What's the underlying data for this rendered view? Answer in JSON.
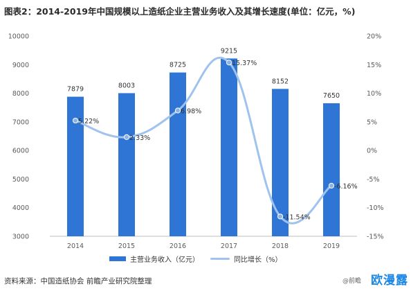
{
  "page": {
    "title": "图表2：2014-2019年中国规模以上造纸企业主营业务收入及其增长速度(单位：亿元，%)",
    "source": "资料来源：中国造纸协会 前瞻产业研究院整理",
    "corner_logo": "欧漫露",
    "corner_sub": "@前瞻"
  },
  "chart_data": {
    "type": "bar",
    "categories": [
      "2014",
      "2015",
      "2016",
      "2017",
      "2018",
      "2019"
    ],
    "series": [
      {
        "name": "主营业务收入（亿元）",
        "type": "bar",
        "axis": "left",
        "values": [
          7879,
          8003,
          8725,
          9215,
          8152,
          7650
        ],
        "labels": [
          "7879",
          "8003",
          "8725",
          "9215",
          "8152",
          "7650"
        ],
        "color": "#2e75d6"
      },
      {
        "name": "同比增长（%）",
        "type": "line",
        "axis": "right",
        "values": [
          5.22,
          2.33,
          6.98,
          15.37,
          -11.54,
          -6.16
        ],
        "labels": [
          "5.22%",
          "2.33%",
          "6.98%",
          "15.37%",
          "-11.54%",
          "-6.16%"
        ],
        "color": "#9fc3ee"
      }
    ],
    "y_left": {
      "ylim": [
        3000,
        10000
      ],
      "ticks": [
        3000,
        4000,
        5000,
        6000,
        7000,
        8000,
        9000,
        10000
      ],
      "tick_labels": [
        "3000",
        "4000",
        "5000",
        "6000",
        "7000",
        "8000",
        "9000",
        "10000"
      ]
    },
    "y_right": {
      "ylim": [
        -15,
        20
      ],
      "ticks": [
        -15,
        -10,
        -5,
        0,
        5,
        10,
        15,
        20
      ],
      "tick_labels": [
        "-15%",
        "-10%",
        "-5%",
        "0%",
        "5%",
        "10%",
        "15%",
        "20%"
      ]
    },
    "grid": false,
    "legend_position": "bottom"
  }
}
